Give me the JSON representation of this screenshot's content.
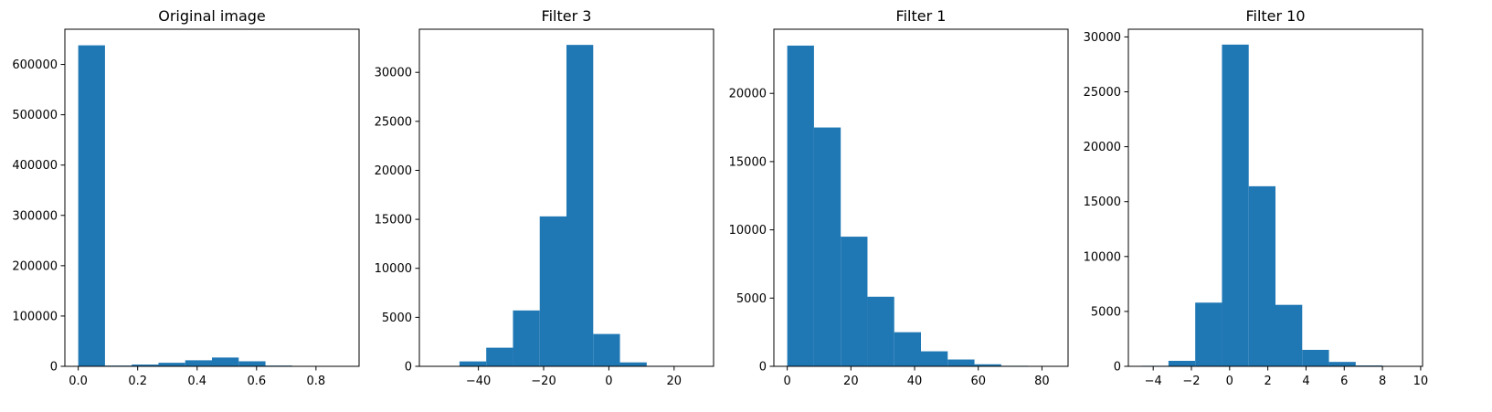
{
  "bar_color": "#1f77b4",
  "chart_data": [
    {
      "type": "bar",
      "title": "Original image",
      "bin_edges": [
        0.0,
        0.09,
        0.18,
        0.27,
        0.36,
        0.45,
        0.54,
        0.63,
        0.72,
        0.81,
        0.9
      ],
      "values": [
        638000,
        1500,
        3500,
        7000,
        12000,
        17500,
        10000,
        1500,
        300,
        50
      ],
      "xlim": [
        -0.045,
        0.945
      ],
      "ylim": [
        0,
        670000
      ],
      "xticks": [
        0.0,
        0.2,
        0.4,
        0.6,
        0.8
      ],
      "xtick_labels": [
        "0.0",
        "0.2",
        "0.4",
        "0.6",
        "0.8"
      ],
      "yticks": [
        0,
        100000,
        200000,
        300000,
        400000,
        500000,
        600000
      ],
      "ytick_labels": [
        "0",
        "100000",
        "200000",
        "300000",
        "400000",
        "500000",
        "600000"
      ]
    },
    {
      "type": "bar",
      "title": "Filter 3",
      "bin_edges": [
        -54,
        -45.8,
        -37.6,
        -29.4,
        -21.2,
        -13,
        -4.8,
        3.4,
        11.6,
        19.8,
        28
      ],
      "values": [
        30,
        500,
        1900,
        5700,
        15300,
        32800,
        3300,
        400,
        50,
        10
      ],
      "xlim": [
        -58.1,
        32.1
      ],
      "ylim": [
        0,
        34400
      ],
      "xticks": [
        -40,
        -20,
        0,
        20
      ],
      "xtick_labels": [
        "−40",
        "−20",
        "0",
        "20"
      ],
      "yticks": [
        0,
        5000,
        10000,
        15000,
        20000,
        25000,
        30000
      ],
      "ytick_labels": [
        "0",
        "5000",
        "10000",
        "15000",
        "20000",
        "25000",
        "30000"
      ]
    },
    {
      "type": "bar",
      "title": "Filter 1",
      "bin_edges": [
        0,
        8.4,
        16.8,
        25.2,
        33.6,
        42,
        50.4,
        58.8,
        67.2,
        75.6,
        84
      ],
      "values": [
        23500,
        17500,
        9500,
        5100,
        2500,
        1100,
        500,
        150,
        40,
        10
      ],
      "xlim": [
        -4.2,
        88.2
      ],
      "ylim": [
        0,
        24700
      ],
      "xticks": [
        0,
        20,
        40,
        60,
        80
      ],
      "xtick_labels": [
        "0",
        "20",
        "40",
        "60",
        "80"
      ],
      "yticks": [
        0,
        5000,
        10000,
        15000,
        20000
      ],
      "ytick_labels": [
        "0",
        "5000",
        "10000",
        "15000",
        "20000"
      ]
    },
    {
      "type": "bar",
      "title": "Filter 10",
      "bin_edges": [
        -4.6,
        -3.2,
        -1.8,
        -0.4,
        1.0,
        2.4,
        3.8,
        5.2,
        6.6,
        8.0,
        9.4
      ],
      "values": [
        50,
        500,
        5800,
        29300,
        16400,
        5600,
        1500,
        400,
        80,
        10
      ],
      "xlim": [
        -5.3,
        10.1
      ],
      "ylim": [
        0,
        30700
      ],
      "xticks": [
        -4,
        -2,
        0,
        2,
        4,
        6,
        8,
        10
      ],
      "xtick_labels": [
        "−4",
        "−2",
        "0",
        "2",
        "4",
        "6",
        "8",
        "10"
      ],
      "yticks": [
        0,
        5000,
        10000,
        15000,
        20000,
        25000,
        30000
      ],
      "ytick_labels": [
        "0",
        "5000",
        "10000",
        "15000",
        "20000",
        "25000",
        "30000"
      ]
    }
  ]
}
